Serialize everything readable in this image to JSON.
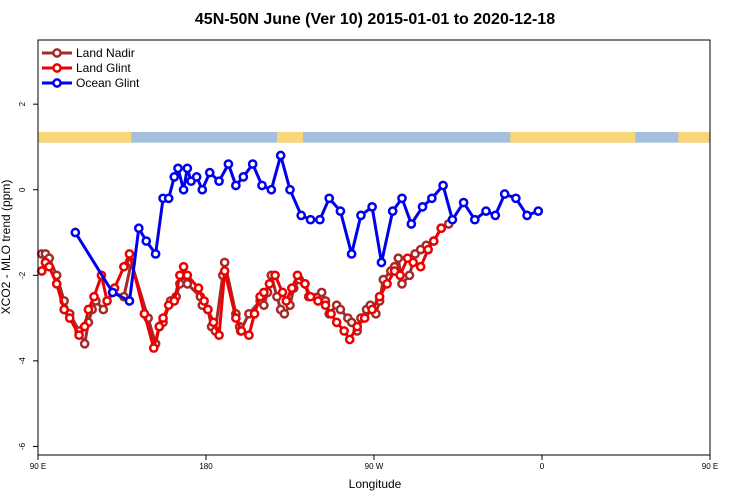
{
  "chart_data": {
    "type": "line",
    "title": "45N-50N June (Ver 10)   2015-01-01 to 2020-12-18",
    "xlabel": "Longitude",
    "ylabel": "XCO2 - MLO trend (ppm)",
    "xlim": [
      90,
      450
    ],
    "ylim": [
      -6.2,
      3.5
    ],
    "xticks": [
      {
        "value": 90,
        "label": "90 E"
      },
      {
        "value": 180,
        "label": "180"
      },
      {
        "value": 270,
        "label": "90 W"
      },
      {
        "value": 360,
        "label": "0"
      },
      {
        "value": 450,
        "label": "90 E"
      },
      {
        "value": 540,
        "label": "180"
      }
    ],
    "yticks": [
      {
        "value": 2,
        "label": "2"
      },
      {
        "value": 0,
        "label": "0"
      },
      {
        "value": -2,
        "label": "-2"
      },
      {
        "value": -4,
        "label": "-4"
      },
      {
        "value": -6,
        "label": "-6"
      }
    ],
    "legend_position": "top-left",
    "land_ocean_strip": {
      "y_range": [
        1.1,
        1.35
      ],
      "land_color": "#f8d67a",
      "ocean_color": "#a6bfdd",
      "land_segments": [
        [
          90,
          140
        ],
        [
          218,
          232
        ],
        [
          343,
          410
        ],
        [
          433,
          500
        ],
        [
          578,
          630
        ]
      ]
    },
    "series": [
      {
        "name": "Land Nadir",
        "color": "#a52a2a",
        "x": [
          92,
          94,
          96,
          100,
          104,
          107,
          112,
          115,
          117,
          119,
          121,
          125,
          130,
          136,
          140,
          149,
          153,
          155,
          157,
          161,
          164,
          166,
          168,
          170,
          177,
          178,
          181,
          183,
          185,
          189,
          190,
          196,
          198,
          198.5,
          203,
          209,
          211,
          213,
          215,
          218,
          220,
          222,
          225,
          227,
          230,
          233,
          235,
          242,
          244,
          246,
          250,
          252,
          256,
          258,
          261,
          263,
          266,
          268,
          271,
          273,
          275,
          279,
          281,
          283,
          285,
          289,
          292,
          295,
          298,
          302,
          306,
          310
        ],
        "y": [
          -1.5,
          -1.5,
          -1.6,
          -2.0,
          -2.6,
          -2.9,
          -3.3,
          -3.6,
          -3.1,
          -2.8,
          -2.6,
          -2.8,
          -2.4,
          -2.5,
          -1.7,
          -3.0,
          -3.6,
          -3.2,
          -3.1,
          -2.6,
          -2.5,
          -2.2,
          -2.0,
          -2.2,
          -2.5,
          -2.7,
          -2.8,
          -3.2,
          -3.3,
          -2.0,
          -1.7,
          -2.9,
          -3.2,
          -3.3,
          -2.9,
          -2.6,
          -2.7,
          -2.4,
          -2.0,
          -2.5,
          -2.8,
          -2.9,
          -2.7,
          -2.3,
          -2.1,
          -2.2,
          -2.5,
          -2.4,
          -2.6,
          -2.9,
          -2.7,
          -2.8,
          -3.0,
          -3.1,
          -3.3,
          -3.0,
          -2.8,
          -2.7,
          -2.9,
          -2.6,
          -2.1,
          -1.9,
          -1.8,
          -1.6,
          -2.2,
          -2.0,
          -1.5,
          -1.4,
          -1.3,
          -1.2,
          -0.9,
          -0.8
        ]
      },
      {
        "name": "Land Glint",
        "color": "#ee0000",
        "x": [
          92,
          94,
          96,
          100,
          104,
          107,
          112,
          115,
          117,
          120,
          124,
          127,
          131,
          136,
          139,
          147,
          152,
          155,
          157,
          160,
          163,
          166,
          168,
          170,
          176,
          179,
          181,
          184,
          187,
          190,
          196,
          199,
          203,
          206,
          209,
          211,
          214,
          217,
          221,
          223,
          226,
          229,
          233,
          236,
          240,
          244,
          247,
          250,
          254,
          257,
          261,
          265,
          269,
          273,
          277,
          281,
          284,
          288,
          291,
          295,
          299,
          302,
          306
        ],
        "y": [
          -1.9,
          -1.7,
          -1.8,
          -2.2,
          -2.8,
          -3.0,
          -3.4,
          -3.2,
          -2.8,
          -2.5,
          -2.0,
          -2.6,
          -2.3,
          -1.8,
          -1.5,
          -2.9,
          -3.7,
          -3.2,
          -3.0,
          -2.7,
          -2.6,
          -2.0,
          -1.8,
          -2.0,
          -2.3,
          -2.6,
          -2.8,
          -3.1,
          -3.4,
          -1.9,
          -3.0,
          -3.3,
          -3.4,
          -2.9,
          -2.5,
          -2.4,
          -2.2,
          -2.0,
          -2.4,
          -2.6,
          -2.3,
          -2.0,
          -2.2,
          -2.5,
          -2.6,
          -2.7,
          -2.9,
          -3.1,
          -3.3,
          -3.5,
          -3.2,
          -3.0,
          -2.8,
          -2.5,
          -2.2,
          -1.9,
          -2.0,
          -1.6,
          -1.7,
          -1.8,
          -1.4,
          -1.2,
          -0.9
        ]
      },
      {
        "name": "Ocean Glint",
        "color": "#0000ee",
        "x": [
          110,
          130,
          139,
          144,
          148,
          153,
          157,
          160,
          163,
          165,
          168,
          170,
          172,
          175,
          178,
          182,
          187,
          192,
          196,
          200,
          205,
          210,
          215,
          220,
          225,
          231,
          236,
          241,
          246,
          252,
          258,
          263,
          269,
          274,
          280,
          285,
          290,
          296,
          301,
          307,
          312,
          318,
          324,
          330,
          335,
          340,
          346,
          352,
          358
        ],
        "y": [
          -1.0,
          -2.4,
          -2.6,
          -0.9,
          -1.2,
          -1.5,
          -0.2,
          -0.2,
          0.3,
          0.5,
          0.0,
          0.5,
          0.2,
          0.3,
          0.0,
          0.4,
          0.2,
          0.6,
          0.1,
          0.3,
          0.6,
          0.1,
          0.0,
          0.8,
          0.0,
          -0.6,
          -0.7,
          -0.7,
          -0.2,
          -0.5,
          -1.5,
          -0.6,
          -0.4,
          -1.7,
          -0.5,
          -0.2,
          -0.8,
          -0.4,
          -0.2,
          0.1,
          -0.7,
          -0.3,
          -0.7,
          -0.5,
          -0.6,
          -0.1,
          -0.2,
          -0.6,
          -0.5
        ]
      }
    ]
  }
}
